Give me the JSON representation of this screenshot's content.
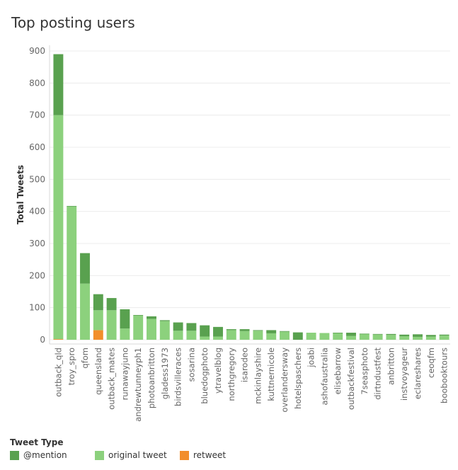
{
  "chart_data": {
    "type": "bar",
    "stacked": true,
    "title": "Top posting users",
    "xlabel": "",
    "ylabel": "Total Tweets",
    "ylim": [
      0,
      900
    ],
    "yticks": [
      0,
      100,
      200,
      300,
      400,
      500,
      600,
      700,
      800,
      900
    ],
    "grid": true,
    "legend_title": "Tweet Type",
    "legend_position": "bottom",
    "categories": [
      "outback_qld",
      "troy_spro",
      "qfom",
      "queensland",
      "outback_mates",
      "runawayjuno",
      "andrewtunneyph1",
      "photoanbritton",
      "gladess1973",
      "birdsvilleraces",
      "sosarina",
      "bluedogphoto",
      "ytravelblog",
      "northgregory",
      "isarodeo",
      "mckinlayshire",
      "kuttnernicole",
      "overlandersway",
      "hotelspaschers",
      "joabi",
      "ashofaustralia",
      "elisebarrow",
      "outbackfestival",
      "7seasphoto",
      "dirtndustfest",
      "anbritton",
      "instvoyageur",
      "eclareshares",
      "ceoqfm",
      "boobooktours"
    ],
    "series": [
      {
        "name": "retweet",
        "color": "#f28e2b",
        "values": [
          2,
          0,
          0,
          30,
          0,
          0,
          0,
          0,
          0,
          0,
          0,
          0,
          0,
          0,
          0,
          0,
          0,
          0,
          0,
          0,
          0,
          0,
          0,
          0,
          0,
          0,
          0,
          0,
          0,
          0
        ]
      },
      {
        "name": "original tweet",
        "color": "#8cd17d",
        "values": [
          698,
          415,
          175,
          62,
          92,
          35,
          75,
          65,
          58,
          28,
          28,
          10,
          10,
          30,
          27,
          28,
          20,
          25,
          0,
          22,
          21,
          21,
          12,
          18,
          16,
          15,
          11,
          9,
          10,
          13
        ]
      },
      {
        "name": "@mention",
        "color": "#59a14f",
        "values": [
          190,
          2,
          95,
          50,
          38,
          60,
          2,
          8,
          3,
          26,
          24,
          35,
          30,
          3,
          6,
          2,
          10,
          2,
          23,
          0,
          0,
          1,
          10,
          1,
          2,
          3,
          5,
          8,
          5,
          3
        ]
      }
    ]
  }
}
